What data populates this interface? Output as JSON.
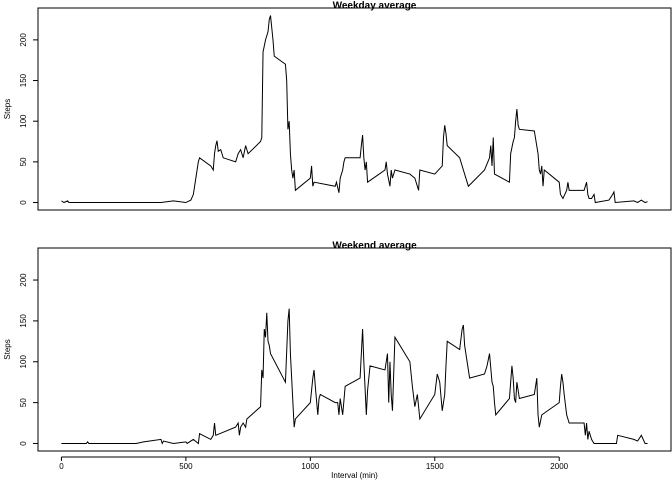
{
  "chart_data": [
    {
      "type": "line",
      "title": "Weekday average",
      "y_label": "Steps",
      "color": "#000000",
      "xlim": [
        -94.2,
        2449.2
      ],
      "ylim": [
        -9.2,
        239.2
      ],
      "yticks": [
        0,
        50,
        100,
        150,
        200
      ],
      "x": [
        0,
        10,
        25,
        30,
        100,
        200,
        300,
        400,
        450,
        500,
        520,
        530,
        540,
        550,
        555,
        600,
        610,
        615,
        620,
        625,
        630,
        640,
        650,
        700,
        710,
        720,
        730,
        740,
        750,
        800,
        805,
        810,
        820,
        830,
        835,
        840,
        845,
        850,
        855,
        900,
        905,
        910,
        915,
        920,
        925,
        930,
        935,
        940,
        1000,
        1005,
        1010,
        1015,
        1100,
        1105,
        1115,
        1120,
        1130,
        1135,
        1140,
        1200,
        1205,
        1210,
        1215,
        1220,
        1225,
        1230,
        1300,
        1305,
        1310,
        1320,
        1325,
        1330,
        1340,
        1400,
        1420,
        1435,
        1440,
        1500,
        1530,
        1535,
        1540,
        1545,
        1550,
        1600,
        1615,
        1630,
        1635,
        1700,
        1720,
        1725,
        1730,
        1735,
        1740,
        1800,
        1805,
        1815,
        1820,
        1825,
        1830,
        1835,
        1840,
        1900,
        1915,
        1920,
        1925,
        1930,
        1935,
        1940,
        2000,
        2005,
        2015,
        2030,
        2035,
        2040,
        2100,
        2110,
        2115,
        2120,
        2130,
        2140,
        2145,
        2200,
        2215,
        2220,
        2225,
        2300,
        2315,
        2330,
        2345,
        2355
      ],
      "values": [
        2,
        0,
        2,
        0,
        0,
        0,
        0,
        0,
        2,
        0,
        3,
        10,
        30,
        50,
        55,
        45,
        40,
        60,
        70,
        76,
        63,
        65,
        55,
        50,
        60,
        65,
        55,
        70,
        60,
        75,
        80,
        185,
        200,
        210,
        225,
        230,
        215,
        200,
        180,
        170,
        150,
        90,
        100,
        60,
        40,
        30,
        40,
        15,
        30,
        45,
        20,
        25,
        20,
        25,
        12,
        30,
        40,
        50,
        55,
        55,
        70,
        83,
        55,
        40,
        50,
        25,
        40,
        50,
        35,
        20,
        40,
        30,
        40,
        35,
        30,
        15,
        40,
        35,
        45,
        80,
        95,
        85,
        70,
        55,
        40,
        25,
        20,
        40,
        55,
        70,
        45,
        80,
        35,
        25,
        60,
        75,
        80,
        100,
        115,
        95,
        90,
        88,
        60,
        40,
        35,
        45,
        20,
        40,
        25,
        10,
        5,
        15,
        25,
        15,
        15,
        25,
        10,
        5,
        5,
        10,
        0,
        3,
        10,
        13,
        0,
        2,
        0,
        3,
        0,
        1
      ]
    },
    {
      "type": "line",
      "title": "Weekend average",
      "y_label": "Steps",
      "x_label": "Interval (min)",
      "color": "#000000",
      "xlim": [
        -94.2,
        2449.2
      ],
      "ylim": [
        -9.2,
        239.2
      ],
      "xticks": [
        0,
        500,
        1000,
        1500,
        2000
      ],
      "yticks": [
        0,
        50,
        100,
        150,
        200
      ],
      "x": [
        0,
        10,
        100,
        105,
        110,
        300,
        330,
        400,
        405,
        410,
        450,
        500,
        505,
        530,
        550,
        555,
        600,
        610,
        615,
        620,
        700,
        710,
        715,
        720,
        730,
        740,
        745,
        800,
        805,
        810,
        815,
        820,
        825,
        830,
        835,
        840,
        900,
        910,
        915,
        920,
        925,
        930,
        935,
        940,
        1000,
        1010,
        1015,
        1020,
        1030,
        1035,
        1040,
        1100,
        1110,
        1115,
        1120,
        1130,
        1140,
        1200,
        1210,
        1215,
        1225,
        1230,
        1240,
        1300,
        1310,
        1315,
        1320,
        1325,
        1330,
        1340,
        1400,
        1410,
        1420,
        1430,
        1440,
        1500,
        1510,
        1520,
        1530,
        1540,
        1545,
        1550,
        1600,
        1610,
        1615,
        1620,
        1630,
        1640,
        1700,
        1710,
        1720,
        1730,
        1735,
        1740,
        1745,
        1800,
        1810,
        1815,
        1820,
        1825,
        1830,
        1840,
        1900,
        1910,
        1915,
        1920,
        1930,
        2000,
        2005,
        2010,
        2015,
        2020,
        2030,
        2040,
        2100,
        2105,
        2110,
        2115,
        2120,
        2130,
        2140,
        2200,
        2230,
        2235,
        2300,
        2315,
        2330,
        2345,
        2355
      ],
      "values": [
        0,
        0,
        0,
        2,
        0,
        0,
        2,
        5,
        0,
        3,
        0,
        2,
        0,
        5,
        0,
        12,
        5,
        10,
        25,
        10,
        20,
        25,
        10,
        20,
        25,
        20,
        30,
        45,
        90,
        80,
        140,
        130,
        160,
        125,
        120,
        110,
        75,
        150,
        165,
        110,
        80,
        50,
        20,
        30,
        50,
        80,
        90,
        70,
        35,
        55,
        60,
        50,
        50,
        35,
        55,
        35,
        70,
        80,
        140,
        100,
        35,
        65,
        95,
        90,
        110,
        50,
        100,
        60,
        40,
        130,
        100,
        70,
        45,
        60,
        30,
        60,
        85,
        75,
        40,
        60,
        95,
        125,
        115,
        140,
        145,
        120,
        100,
        80,
        85,
        95,
        110,
        75,
        70,
        50,
        35,
        55,
        95,
        80,
        55,
        50,
        75,
        55,
        60,
        80,
        35,
        20,
        35,
        50,
        70,
        85,
        75,
        60,
        35,
        25,
        25,
        10,
        25,
        5,
        15,
        5,
        0,
        0,
        0,
        10,
        5,
        3,
        10,
        0,
        0
      ]
    }
  ]
}
